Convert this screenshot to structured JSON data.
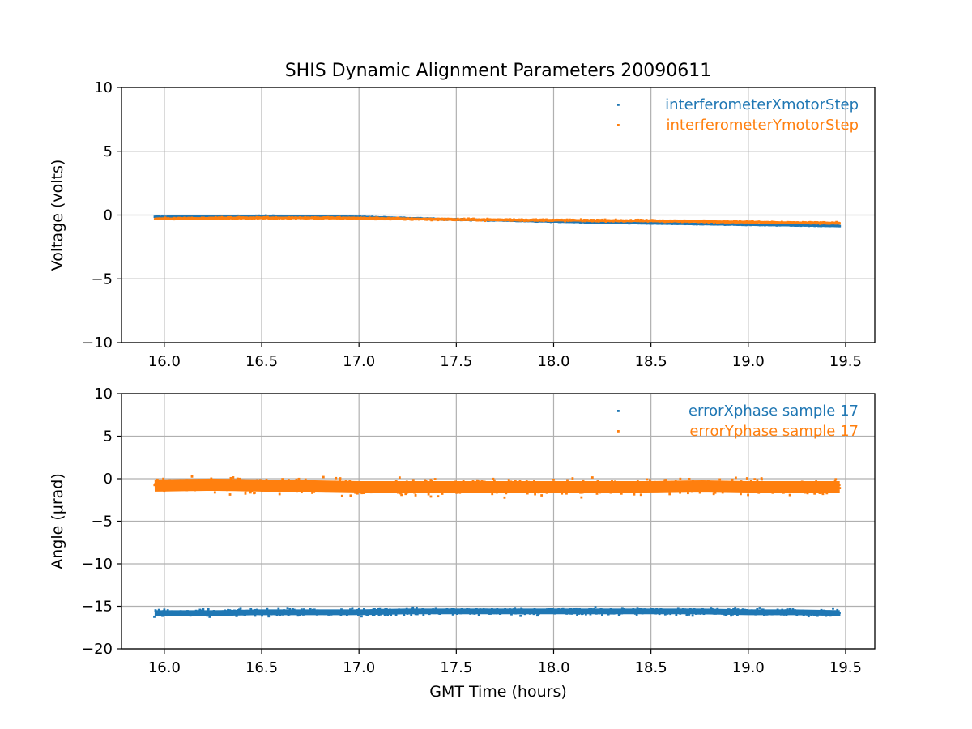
{
  "chart_data": {
    "type": "scatter",
    "title": "SHIS Dynamic Alignment Parameters 20090611",
    "xlabel": "GMT Time (hours)",
    "colors": {
      "series1": "#1f77b4",
      "series2": "#ff7f0e"
    },
    "legend_position": "top-right",
    "grid": true,
    "panels": [
      {
        "ylabel": "Voltage (volts)",
        "xlim": [
          15.78,
          19.65
        ],
        "ylim": [
          -10,
          10
        ],
        "xticks": [
          "16.0",
          "16.5",
          "17.0",
          "17.5",
          "18.0",
          "18.5",
          "19.0",
          "19.5"
        ],
        "yticks": [
          "10",
          "5",
          "0",
          "−5",
          "−10"
        ],
        "series": [
          {
            "name": "interferometerXmotorStep",
            "x": [
              15.95,
              16.25,
              16.5,
              16.75,
              17.0,
              17.25,
              17.5,
              17.75,
              18.0,
              18.25,
              18.5,
              18.75,
              19.0,
              19.25,
              19.47
            ],
            "y": [
              -0.15,
              -0.1,
              -0.08,
              -0.09,
              -0.15,
              -0.25,
              -0.35,
              -0.42,
              -0.5,
              -0.58,
              -0.65,
              -0.7,
              -0.75,
              -0.8,
              -0.85
            ],
            "spread": 0.12
          },
          {
            "name": "interferometerYmotorStep",
            "x": [
              15.95,
              16.25,
              16.5,
              16.75,
              17.0,
              17.25,
              17.5,
              17.75,
              18.0,
              18.25,
              18.5,
              18.75,
              19.0,
              19.25,
              19.47
            ],
            "y": [
              -0.3,
              -0.25,
              -0.22,
              -0.22,
              -0.25,
              -0.3,
              -0.35,
              -0.38,
              -0.4,
              -0.43,
              -0.45,
              -0.5,
              -0.55,
              -0.6,
              -0.62
            ],
            "spread": 0.2
          }
        ]
      },
      {
        "ylabel": "Angle (μrad)",
        "xlim": [
          15.78,
          19.65
        ],
        "ylim": [
          -20,
          10
        ],
        "xticks": [
          "16.0",
          "16.5",
          "17.0",
          "17.5",
          "18.0",
          "18.5",
          "19.0",
          "19.5"
        ],
        "yticks": [
          "10",
          "5",
          "0",
          "−5",
          "−10",
          "−15",
          "−20"
        ],
        "series": [
          {
            "name": "errorXphase sample 17",
            "x": [
              15.95,
              16.25,
              16.5,
              16.75,
              17.0,
              17.25,
              17.5,
              17.75,
              18.0,
              18.25,
              18.5,
              18.75,
              19.0,
              19.25,
              19.47
            ],
            "y": [
              -15.8,
              -15.8,
              -15.7,
              -15.7,
              -15.7,
              -15.6,
              -15.6,
              -15.6,
              -15.6,
              -15.6,
              -15.6,
              -15.6,
              -15.7,
              -15.7,
              -15.8
            ],
            "spread": 1.2
          },
          {
            "name": "errorYphase sample 17",
            "x": [
              15.95,
              16.25,
              16.5,
              16.75,
              17.0,
              17.25,
              17.5,
              17.75,
              18.0,
              18.25,
              18.5,
              18.75,
              19.0,
              19.25,
              19.47
            ],
            "y": [
              -0.8,
              -0.7,
              -0.8,
              -0.9,
              -1.0,
              -1.0,
              -1.0,
              -1.0,
              -1.0,
              -1.0,
              -1.0,
              -0.9,
              -1.0,
              -1.0,
              -1.0
            ],
            "spread": 2.6
          }
        ]
      }
    ]
  }
}
